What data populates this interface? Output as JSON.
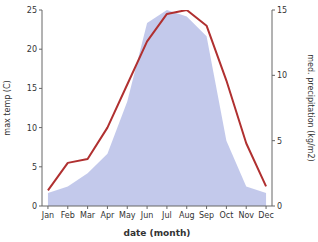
{
  "chart_data": {
    "type": "line",
    "categories": [
      "Jan",
      "Feb",
      "Mar",
      "Apr",
      "May",
      "Jun",
      "Jul",
      "Aug",
      "Sep",
      "Oct",
      "Nov",
      "Dec"
    ],
    "xlabel": "date (month)",
    "ylabel": "max temp (C)",
    "y2label": "med. precipitation (kg/m2)",
    "series": [
      {
        "type": "area",
        "axis": "y2",
        "color": "#b8c0e8",
        "values": [
          1.0,
          1.5,
          2.5,
          4.0,
          8.0,
          14.0,
          15.0,
          14.5,
          13.0,
          5.0,
          1.5,
          1.0
        ]
      },
      {
        "type": "line",
        "color": "#b03030",
        "values": [
          2.0,
          5.5,
          6.0,
          10.0,
          15.5,
          21.0,
          24.5,
          25.0,
          23.0,
          16.0,
          8.0,
          2.5
        ]
      }
    ],
    "ylim": [
      0,
      25
    ],
    "yticks": [
      0,
      5,
      10,
      15,
      20,
      25
    ],
    "y2lim": [
      0,
      15
    ],
    "y2ticks": [
      0,
      5,
      10,
      15
    ],
    "grid": false
  }
}
